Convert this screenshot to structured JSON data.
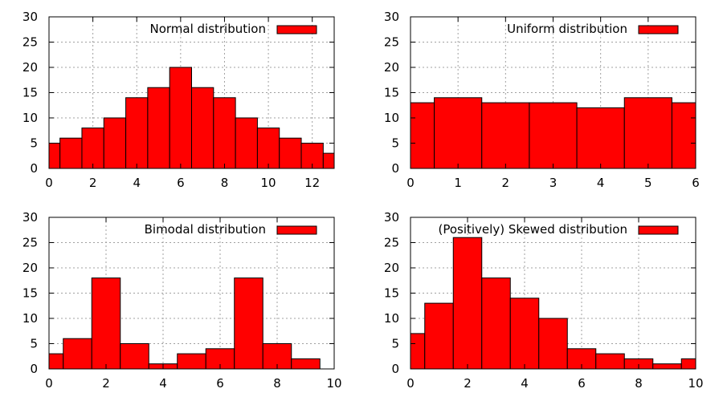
{
  "chart_data": [
    {
      "type": "bar",
      "id": "normal",
      "series": [
        {
          "name": "Normal distribution",
          "color": "#ff0000"
        }
      ],
      "bins": [
        {
          "from": 0,
          "to": 0.5,
          "value": 5
        },
        {
          "from": 0.5,
          "to": 1.5,
          "value": 6
        },
        {
          "from": 1.5,
          "to": 2.5,
          "value": 8
        },
        {
          "from": 2.5,
          "to": 3.5,
          "value": 10
        },
        {
          "from": 3.5,
          "to": 4.5,
          "value": 14
        },
        {
          "from": 4.5,
          "to": 5.5,
          "value": 16
        },
        {
          "from": 5.5,
          "to": 6.5,
          "value": 20
        },
        {
          "from": 6.5,
          "to": 7.5,
          "value": 16
        },
        {
          "from": 7.5,
          "to": 8.5,
          "value": 14
        },
        {
          "from": 8.5,
          "to": 9.5,
          "value": 10
        },
        {
          "from": 9.5,
          "to": 10.5,
          "value": 8
        },
        {
          "from": 10.5,
          "to": 11.5,
          "value": 6
        },
        {
          "from": 11.5,
          "to": 12.5,
          "value": 5
        },
        {
          "from": 12.5,
          "to": 13,
          "value": 3
        }
      ],
      "xlim": [
        0,
        13
      ],
      "ylim": [
        0,
        30
      ],
      "xticks": [
        "0",
        "2",
        "4",
        "6",
        "8",
        "10",
        "12"
      ],
      "yticks": [
        "0",
        "5",
        "10",
        "15",
        "20",
        "25",
        "30"
      ],
      "grid": true,
      "legend": "top-right"
    },
    {
      "type": "bar",
      "id": "uniform",
      "series": [
        {
          "name": "Uniform distribution",
          "color": "#ff0000"
        }
      ],
      "bins": [
        {
          "from": 0,
          "to": 0.5,
          "value": 13
        },
        {
          "from": 0.5,
          "to": 1.5,
          "value": 14
        },
        {
          "from": 1.5,
          "to": 2.5,
          "value": 13
        },
        {
          "from": 2.5,
          "to": 3.5,
          "value": 13
        },
        {
          "from": 3.5,
          "to": 4.5,
          "value": 12
        },
        {
          "from": 4.5,
          "to": 5.5,
          "value": 14
        },
        {
          "from": 5.5,
          "to": 6,
          "value": 13
        }
      ],
      "xlim": [
        0,
        6
      ],
      "ylim": [
        0,
        30
      ],
      "xticks": [
        "0",
        "1",
        "2",
        "3",
        "4",
        "5",
        "6"
      ],
      "yticks": [
        "0",
        "5",
        "10",
        "15",
        "20",
        "25",
        "30"
      ],
      "grid": true,
      "legend": "top-right"
    },
    {
      "type": "bar",
      "id": "bimodal",
      "series": [
        {
          "name": "Bimodal distribution",
          "color": "#ff0000"
        }
      ],
      "bins": [
        {
          "from": 0,
          "to": 0.5,
          "value": 3
        },
        {
          "from": 0.5,
          "to": 1.5,
          "value": 6
        },
        {
          "from": 1.5,
          "to": 2.5,
          "value": 18
        },
        {
          "from": 2.5,
          "to": 3.5,
          "value": 5
        },
        {
          "from": 3.5,
          "to": 4.5,
          "value": 1
        },
        {
          "from": 4.5,
          "to": 5.5,
          "value": 3
        },
        {
          "from": 5.5,
          "to": 6.5,
          "value": 4
        },
        {
          "from": 6.5,
          "to": 7.5,
          "value": 18
        },
        {
          "from": 7.5,
          "to": 8.5,
          "value": 5
        },
        {
          "from": 8.5,
          "to": 9.5,
          "value": 2
        }
      ],
      "xlim": [
        0,
        10
      ],
      "ylim": [
        0,
        30
      ],
      "xticks": [
        "0",
        "2",
        "4",
        "6",
        "8",
        "10"
      ],
      "yticks": [
        "0",
        "5",
        "10",
        "15",
        "20",
        "25",
        "30"
      ],
      "grid": true,
      "legend": "top-right"
    },
    {
      "type": "bar",
      "id": "skewed",
      "series": [
        {
          "name": "(Positively) Skewed distribution",
          "color": "#ff0000"
        }
      ],
      "bins": [
        {
          "from": 0,
          "to": 0.5,
          "value": 7
        },
        {
          "from": 0.5,
          "to": 1.5,
          "value": 13
        },
        {
          "from": 1.5,
          "to": 2.5,
          "value": 26
        },
        {
          "from": 2.5,
          "to": 3.5,
          "value": 18
        },
        {
          "from": 3.5,
          "to": 4.5,
          "value": 14
        },
        {
          "from": 4.5,
          "to": 5.5,
          "value": 10
        },
        {
          "from": 5.5,
          "to": 6.5,
          "value": 4
        },
        {
          "from": 6.5,
          "to": 7.5,
          "value": 3
        },
        {
          "from": 7.5,
          "to": 8.5,
          "value": 2
        },
        {
          "from": 8.5,
          "to": 9.5,
          "value": 1
        },
        {
          "from": 9.5,
          "to": 10,
          "value": 2
        }
      ],
      "xlim": [
        0,
        10
      ],
      "ylim": [
        0,
        30
      ],
      "xticks": [
        "0",
        "2",
        "4",
        "6",
        "8",
        "10"
      ],
      "yticks": [
        "0",
        "5",
        "10",
        "15",
        "20",
        "25",
        "30"
      ],
      "grid": true,
      "legend": "top-right"
    }
  ]
}
